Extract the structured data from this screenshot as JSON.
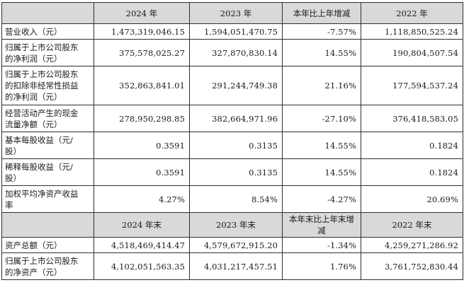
{
  "header1": [
    "",
    "2024 年",
    "2023 年",
    "本年比上年增减",
    "2022 年"
  ],
  "rows1": [
    {
      "label": "营业收入（元）",
      "values": [
        "1,473,319,046.15",
        "1,594,051,470.75",
        "-7.57%",
        "1,118,850,525.24"
      ]
    },
    {
      "label": "归属于上市公司股东\n的净利润（元）",
      "values": [
        "375,578,025.27",
        "327,870,830.14",
        "14.55%",
        "190,804,507.54"
      ]
    },
    {
      "label": "归属于上市公司股东\n的扣除非经常性损益\n的净利润（元）",
      "values": [
        "352,863,841.01",
        "291,244,749.38",
        "21.16%",
        "177,594,537.24"
      ]
    },
    {
      "label": "经营活动产生的现金\n流量净额（元）",
      "values": [
        "278,950,298.85",
        "382,664,971.96",
        "-27.10%",
        "376,418,583.05"
      ]
    },
    {
      "label": "基本每股收益（元/\n股）",
      "values": [
        "0.3591",
        "0.3135",
        "14.55%",
        "0.1824"
      ]
    },
    {
      "label": "稀释每股收益（元/\n股）",
      "values": [
        "0.3591",
        "0.3135",
        "14.55%",
        "0.1824"
      ]
    },
    {
      "label": "加权平均净资产收益\n率",
      "values": [
        "4.27%",
        "8.54%",
        "-4.27%",
        "20.69%"
      ]
    }
  ],
  "header2": [
    "",
    "2024 年末",
    "2023 年末",
    "本年末比上年末增减",
    "2022 年末"
  ],
  "rows2": [
    {
      "label": "资产总额（元）",
      "values": [
        "4,518,469,414.47",
        "4,579,672,915.20",
        "-1.34%",
        "4,259,271,286.92"
      ]
    },
    {
      "label": "归属于上市公司股东\n的净资产（元）",
      "values": [
        "4,102,051,563.35",
        "4,031,217,457.51",
        "1.76%",
        "3,761,752,830.44"
      ]
    }
  ]
}
